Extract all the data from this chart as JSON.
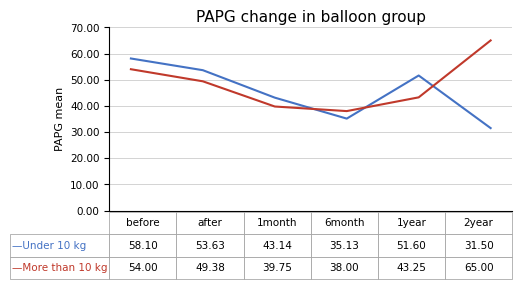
{
  "title": "PAPG change in balloon group",
  "xlabel_categories": [
    "before",
    "after",
    "1month",
    "6month",
    "1year",
    "2year"
  ],
  "series": [
    {
      "label": "Under 10 kg",
      "values": [
        58.1,
        53.63,
        43.14,
        35.13,
        51.6,
        31.5
      ],
      "color": "#4472C4"
    },
    {
      "label": "More than 10 kg",
      "values": [
        54.0,
        49.38,
        39.75,
        38.0,
        43.25,
        65.0
      ],
      "color": "#C0392B"
    }
  ],
  "ylabel": "PAPG mean",
  "ylim": [
    0,
    70
  ],
  "yticks": [
    0.0,
    10.0,
    20.0,
    30.0,
    40.0,
    50.0,
    60.0,
    70.0
  ],
  "table_rows": [
    [
      "58.10",
      "53.63",
      "43.14",
      "35.13",
      "51.60",
      "31.50"
    ],
    [
      "54.00",
      "49.38",
      "39.75",
      "38.00",
      "43.25",
      "65.00"
    ]
  ],
  "table_row_labels": [
    "—Under 10 kg",
    "—More than 10 kg"
  ],
  "table_col_labels": [
    "before",
    "after",
    "1month",
    "6month",
    "1year",
    "2year"
  ],
  "background_color": "#FFFFFF",
  "grid_color": "#CCCCCC",
  "title_fontsize": 11,
  "axis_fontsize": 8,
  "table_fontsize": 7.5
}
